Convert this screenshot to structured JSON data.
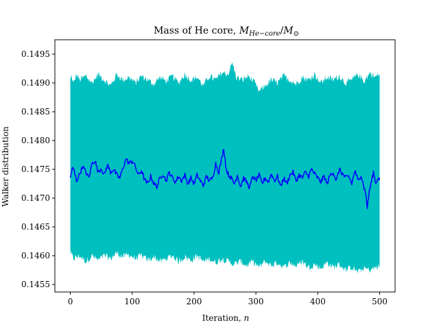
{
  "chart_data": {
    "type": "line",
    "title": "Mass of He core, ",
    "title_math": {
      "m_prefix": "M",
      "m_sub": "He−core",
      "slash": "/",
      "m2": "M",
      "m2_sub": "⊙"
    },
    "xlabel": "Iteration, ",
    "xlabel_math": "n",
    "ylabel": "Walker distribution",
    "xlim": [
      -25,
      525
    ],
    "ylim": [
      0.14537,
      0.14975
    ],
    "x_ticks": [
      0,
      100,
      200,
      300,
      400,
      500
    ],
    "x_tick_labels": [
      "0",
      "100",
      "200",
      "300",
      "400",
      "500"
    ],
    "y_ticks": [
      0.1455,
      0.146,
      0.1465,
      0.147,
      0.1475,
      0.148,
      0.1485,
      0.149,
      0.1495
    ],
    "y_tick_labels": [
      "0.1455",
      "0.1460",
      "0.1465",
      "0.1470",
      "0.1475",
      "0.1480",
      "0.1485",
      "0.1490",
      "0.1495"
    ],
    "grid": false,
    "x_range": [
      0,
      500
    ],
    "series": [
      {
        "kind": "band",
        "color": "#00bfbf",
        "upper_anchors": [
          [
            0,
            0.14905
          ],
          [
            2,
            0.14912
          ],
          [
            5,
            0.14898
          ],
          [
            10,
            0.14915
          ],
          [
            15,
            0.14905
          ],
          [
            25,
            0.14912
          ],
          [
            35,
            0.149
          ],
          [
            45,
            0.14915
          ],
          [
            55,
            0.14905
          ],
          [
            65,
            0.14895
          ],
          [
            75,
            0.14915
          ],
          [
            85,
            0.14905
          ],
          [
            95,
            0.1491
          ],
          [
            105,
            0.149
          ],
          [
            115,
            0.14912
          ],
          [
            125,
            0.14905
          ],
          [
            135,
            0.14898
          ],
          [
            145,
            0.1491
          ],
          [
            155,
            0.14903
          ],
          [
            165,
            0.14912
          ],
          [
            175,
            0.149
          ],
          [
            185,
            0.14915
          ],
          [
            195,
            0.14905
          ],
          [
            205,
            0.1491
          ],
          [
            215,
            0.14895
          ],
          [
            225,
            0.14912
          ],
          [
            235,
            0.14905
          ],
          [
            245,
            0.14918
          ],
          [
            255,
            0.14915
          ],
          [
            262,
            0.14935
          ],
          [
            268,
            0.1491
          ],
          [
            278,
            0.14905
          ],
          [
            288,
            0.14912
          ],
          [
            298,
            0.149
          ],
          [
            305,
            0.14885
          ],
          [
            315,
            0.14895
          ],
          [
            325,
            0.14905
          ],
          [
            335,
            0.149
          ],
          [
            345,
            0.14912
          ],
          [
            355,
            0.14905
          ],
          [
            365,
            0.14898
          ],
          [
            375,
            0.1491
          ],
          [
            385,
            0.14905
          ],
          [
            395,
            0.14915
          ],
          [
            405,
            0.149
          ],
          [
            415,
            0.1491
          ],
          [
            425,
            0.14905
          ],
          [
            435,
            0.14912
          ],
          [
            445,
            0.149
          ],
          [
            455,
            0.14905
          ],
          [
            465,
            0.14915
          ],
          [
            475,
            0.14903
          ],
          [
            485,
            0.14918
          ],
          [
            492,
            0.1491
          ],
          [
            500,
            0.14915
          ]
        ],
        "lower_anchors": [
          [
            0,
            0.14605
          ],
          [
            5,
            0.14595
          ],
          [
            15,
            0.146
          ],
          [
            25,
            0.1459
          ],
          [
            35,
            0.146
          ],
          [
            45,
            0.14592
          ],
          [
            55,
            0.146
          ],
          [
            65,
            0.14595
          ],
          [
            75,
            0.14605
          ],
          [
            85,
            0.14598
          ],
          [
            95,
            0.14602
          ],
          [
            105,
            0.14595
          ],
          [
            115,
            0.146
          ],
          [
            125,
            0.14592
          ],
          [
            135,
            0.14598
          ],
          [
            145,
            0.1459
          ],
          [
            155,
            0.14595
          ],
          [
            165,
            0.146
          ],
          [
            175,
            0.1459
          ],
          [
            185,
            0.14598
          ],
          [
            195,
            0.14592
          ],
          [
            205,
            0.146
          ],
          [
            215,
            0.1459
          ],
          [
            225,
            0.14595
          ],
          [
            235,
            0.14588
          ],
          [
            245,
            0.14595
          ],
          [
            255,
            0.1459
          ],
          [
            265,
            0.14585
          ],
          [
            275,
            0.1459
          ],
          [
            285,
            0.14583
          ],
          [
            295,
            0.1459
          ],
          [
            305,
            0.1458
          ],
          [
            315,
            0.1459
          ],
          [
            325,
            0.14583
          ],
          [
            335,
            0.14588
          ],
          [
            345,
            0.1458
          ],
          [
            355,
            0.14588
          ],
          [
            365,
            0.14582
          ],
          [
            375,
            0.1459
          ],
          [
            385,
            0.1458
          ],
          [
            395,
            0.14585
          ],
          [
            405,
            0.14578
          ],
          [
            415,
            0.14588
          ],
          [
            425,
            0.1458
          ],
          [
            435,
            0.14585
          ],
          [
            445,
            0.14575
          ],
          [
            455,
            0.1458
          ],
          [
            465,
            0.14572
          ],
          [
            475,
            0.14578
          ],
          [
            485,
            0.14575
          ],
          [
            495,
            0.1458
          ],
          [
            500,
            0.14582
          ]
        ]
      },
      {
        "kind": "line",
        "color": "#0000ff",
        "anchors": [
          [
            0,
            0.14735
          ],
          [
            3,
            0.14752
          ],
          [
            6,
            0.14748
          ],
          [
            10,
            0.1473
          ],
          [
            15,
            0.14742
          ],
          [
            20,
            0.14755
          ],
          [
            25,
            0.14745
          ],
          [
            30,
            0.14735
          ],
          [
            35,
            0.1476
          ],
          [
            40,
            0.14765
          ],
          [
            45,
            0.14745
          ],
          [
            50,
            0.14752
          ],
          [
            55,
            0.1474
          ],
          [
            60,
            0.14758
          ],
          [
            65,
            0.14745
          ],
          [
            70,
            0.1475
          ],
          [
            75,
            0.1474
          ],
          [
            80,
            0.14735
          ],
          [
            85,
            0.14752
          ],
          [
            90,
            0.14768
          ],
          [
            95,
            0.1476
          ],
          [
            100,
            0.14765
          ],
          [
            105,
            0.14755
          ],
          [
            110,
            0.1474
          ],
          [
            115,
            0.14748
          ],
          [
            120,
            0.14732
          ],
          [
            125,
            0.14725
          ],
          [
            130,
            0.14738
          ],
          [
            135,
            0.14725
          ],
          [
            140,
            0.1472
          ],
          [
            145,
            0.14735
          ],
          [
            150,
            0.14742
          ],
          [
            155,
            0.1473
          ],
          [
            160,
            0.14745
          ],
          [
            165,
            0.14735
          ],
          [
            170,
            0.14728
          ],
          [
            175,
            0.14738
          ],
          [
            180,
            0.1473
          ],
          [
            185,
            0.1474
          ],
          [
            190,
            0.14725
          ],
          [
            195,
            0.14735
          ],
          [
            200,
            0.14725
          ],
          [
            205,
            0.1474
          ],
          [
            210,
            0.1473
          ],
          [
            215,
            0.14722
          ],
          [
            220,
            0.14738
          ],
          [
            225,
            0.1473
          ],
          [
            230,
            0.14735
          ],
          [
            235,
            0.1476
          ],
          [
            240,
            0.14745
          ],
          [
            245,
            0.1477
          ],
          [
            248,
            0.14787
          ],
          [
            252,
            0.1475
          ],
          [
            256,
            0.1474
          ],
          [
            260,
            0.14735
          ],
          [
            265,
            0.14725
          ],
          [
            270,
            0.1474
          ],
          [
            275,
            0.1472
          ],
          [
            280,
            0.14735
          ],
          [
            285,
            0.14728
          ],
          [
            290,
            0.14718
          ],
          [
            295,
            0.14738
          ],
          [
            300,
            0.1473
          ],
          [
            305,
            0.1474
          ],
          [
            310,
            0.14725
          ],
          [
            315,
            0.14735
          ],
          [
            320,
            0.14728
          ],
          [
            325,
            0.14742
          ],
          [
            330,
            0.1473
          ],
          [
            335,
            0.14738
          ],
          [
            340,
            0.1472
          ],
          [
            345,
            0.14735
          ],
          [
            350,
            0.14725
          ],
          [
            355,
            0.1474
          ],
          [
            360,
            0.14745
          ],
          [
            365,
            0.1473
          ],
          [
            370,
            0.1474
          ],
          [
            375,
            0.14735
          ],
          [
            380,
            0.14745
          ],
          [
            385,
            0.14738
          ],
          [
            390,
            0.1475
          ],
          [
            395,
            0.14742
          ],
          [
            400,
            0.14735
          ],
          [
            405,
            0.14728
          ],
          [
            410,
            0.14738
          ],
          [
            415,
            0.14725
          ],
          [
            420,
            0.1474
          ],
          [
            425,
            0.14745
          ],
          [
            430,
            0.1473
          ],
          [
            435,
            0.1475
          ],
          [
            440,
            0.14742
          ],
          [
            445,
            0.14735
          ],
          [
            450,
            0.14738
          ],
          [
            455,
            0.14725
          ],
          [
            460,
            0.14748
          ],
          [
            465,
            0.1473
          ],
          [
            470,
            0.1474
          ],
          [
            475,
            0.14718
          ],
          [
            478,
            0.14705
          ],
          [
            480,
            0.14683
          ],
          [
            483,
            0.1471
          ],
          [
            487,
            0.1473
          ],
          [
            490,
            0.14745
          ],
          [
            494,
            0.14725
          ],
          [
            497,
            0.14735
          ],
          [
            500,
            0.14733
          ]
        ]
      }
    ]
  }
}
